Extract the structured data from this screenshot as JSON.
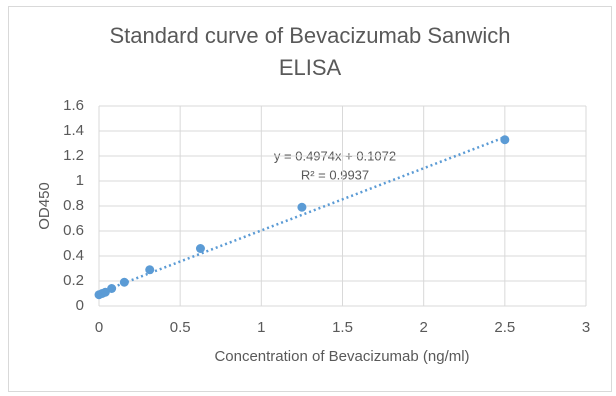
{
  "chart_data": {
    "type": "scatter",
    "title": "Standard curve of Bevacizumab Sanwich ELISA",
    "x_label": "Concentration of Bevacizumab (ng/ml)",
    "y_label": "OD450",
    "series": [
      {
        "color": "#5b9bd5",
        "x": [
          0,
          0.0195,
          0.039,
          0.078,
          0.156,
          0.3125,
          0.625,
          1.25,
          2.5
        ],
        "values": [
          0.09,
          0.1,
          0.11,
          0.14,
          0.19,
          0.29,
          0.46,
          0.79,
          1.33
        ]
      }
    ],
    "trendline": {
      "slope": 0.4974,
      "intercept": 0.1072,
      "equation": "y = 0.4974x + 0.1072",
      "r2_label": "R² = 0.9937"
    },
    "xlim": [
      0,
      3
    ],
    "xticks": [
      0,
      0.5,
      1,
      1.5,
      2,
      2.5,
      3
    ],
    "ylim": [
      0,
      1.6
    ],
    "yticks": [
      0,
      0.2,
      0.4,
      0.6,
      0.8,
      1,
      1.2,
      1.4,
      1.6
    ],
    "grid": true
  }
}
